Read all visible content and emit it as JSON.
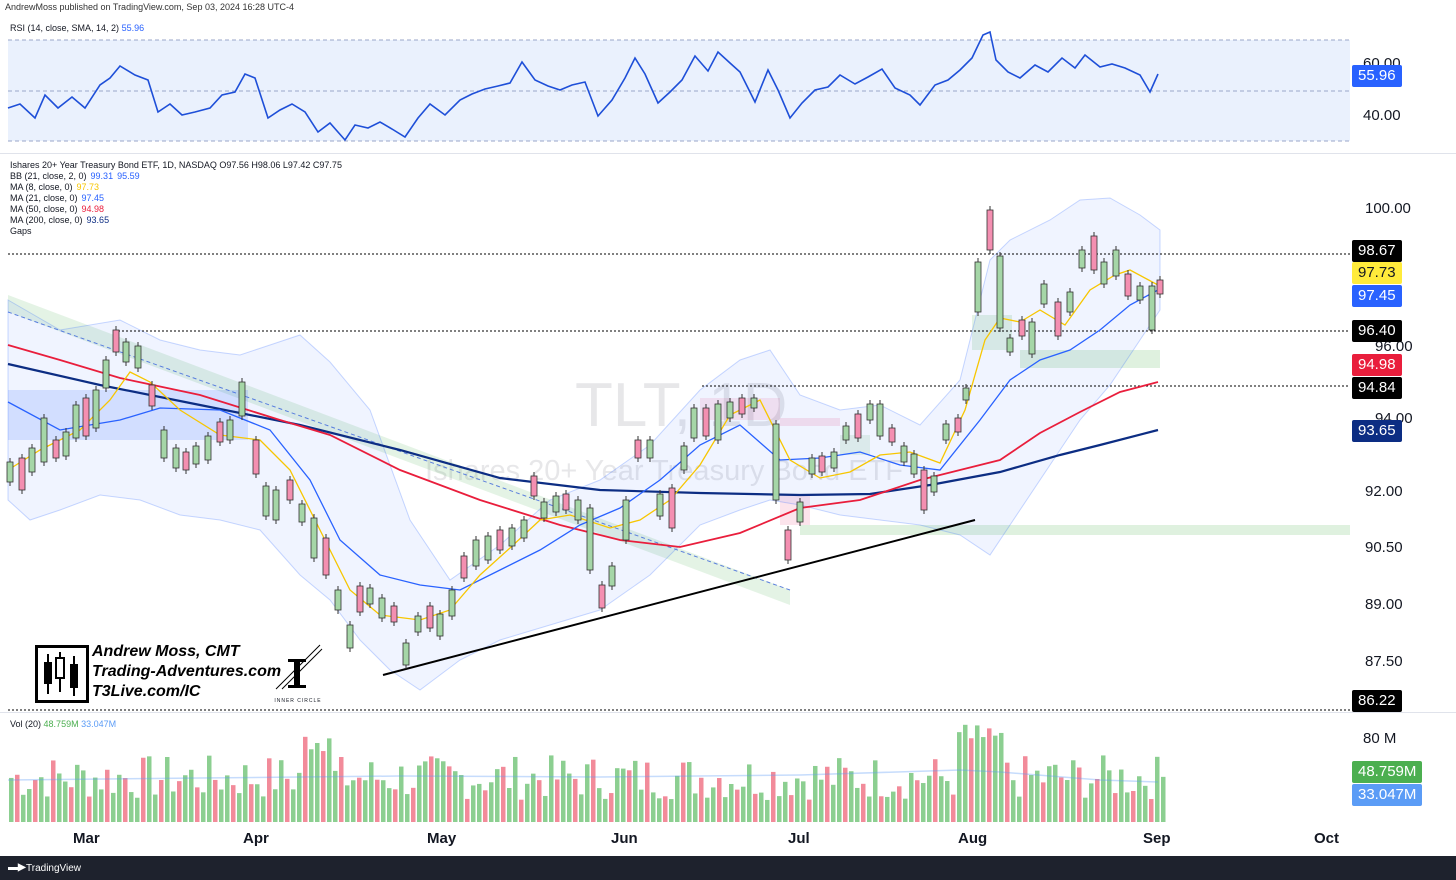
{
  "header": {
    "publisher": "AndrewMoss published on TradingView.com, Sep 03, 2024 16:28 UTC-4"
  },
  "rsi_pane": {
    "title": "RSI (14, close, SMA, 14, 2)",
    "value": "55.96",
    "levels": [
      "60.00",
      "40.00"
    ],
    "value_color": "#2962ff"
  },
  "price_pane": {
    "symbol_line": "Ishares 20+ Year Treasury Bond ETF, 1D, NASDAQ  O97.56  H98.06  L97.42  C97.75",
    "watermark_symbol": "TLT, 1D",
    "watermark_name": "Ishares 20+ Year Treasury Bond ETF",
    "indicators": [
      {
        "label": "BB (21, close, 2, 0)",
        "values": [
          "99.31",
          "95.59"
        ],
        "color": "#2962ff"
      },
      {
        "label": "MA (8, close, 0)",
        "values": [
          "97.73"
        ],
        "color": "#f7c600"
      },
      {
        "label": "MA (21, close, 0)",
        "values": [
          "97.45"
        ],
        "color": "#2962ff"
      },
      {
        "label": "MA (50, close, 0)",
        "values": [
          "94.98"
        ],
        "color": "#e91e3c"
      },
      {
        "label": "MA (200, close, 0)",
        "values": [
          "93.65"
        ],
        "color": "#0c2d83"
      },
      {
        "label": "Gaps",
        "values": [],
        "color": "#131722"
      }
    ],
    "axis_ticks": [
      "100.00",
      "96.00",
      "94.00",
      "92.00",
      "90.50",
      "89.00",
      "87.50"
    ],
    "badges": [
      {
        "text": "98.67",
        "bg": "#000000",
        "fg": "#ffffff"
      },
      {
        "text": "97.73",
        "bg": "#ffeb3b",
        "fg": "#131722"
      },
      {
        "text": "97.45",
        "bg": "#2962ff",
        "fg": "#ffffff"
      },
      {
        "text": "96.40",
        "bg": "#000000",
        "fg": "#ffffff"
      },
      {
        "text": "94.98",
        "bg": "#e91e3c",
        "fg": "#ffffff"
      },
      {
        "text": "94.84",
        "bg": "#000000",
        "fg": "#ffffff"
      },
      {
        "text": "93.65",
        "bg": "#0c2d83",
        "fg": "#ffffff"
      },
      {
        "text": "86.22",
        "bg": "#000000",
        "fg": "#ffffff"
      }
    ]
  },
  "branding": {
    "name": "Andrew Moss, CMT",
    "site": "Trading-Adventures.com",
    "site2": "T3Live.com/IC",
    "inner_circle": "INNER CIRCLE"
  },
  "volume_pane": {
    "title": "Vol (20)",
    "values": [
      "48.759M",
      "33.047M"
    ],
    "axis_tick": "80 M",
    "badges": [
      {
        "text": "48.759M",
        "bg": "#4caf50",
        "fg": "#ffffff"
      },
      {
        "text": "33.047M",
        "bg": "#5b9cf6",
        "fg": "#ffffff"
      }
    ]
  },
  "x_axis": {
    "months": [
      "Mar",
      "Apr",
      "May",
      "Jun",
      "Jul",
      "Aug",
      "Sep",
      "Oct"
    ]
  },
  "footer": {
    "brand": "TradingView"
  },
  "chart_data": {
    "type": "candlestick",
    "symbol": "TLT",
    "interval": "1D",
    "ohlc_last": {
      "open": 97.56,
      "high": 98.06,
      "low": 97.42,
      "close": 97.75
    },
    "y_range": [
      86.22,
      100.5
    ],
    "horizontal_levels": [
      98.67,
      96.4,
      94.84,
      86.22
    ],
    "moving_averages_last": {
      "ma8": 97.73,
      "ma21": 97.45,
      "ma50": 94.98,
      "ma200": 93.65
    },
    "bollinger_last": {
      "upper": 99.31,
      "lower": 95.59
    },
    "rsi_last": 55.96,
    "volume_last": {
      "vol": "48.759M",
      "ma": "33.047M"
    },
    "x_categories": [
      "Mar",
      "Apr",
      "May",
      "Jun",
      "Jul",
      "Aug",
      "Sep",
      "Oct"
    ]
  }
}
